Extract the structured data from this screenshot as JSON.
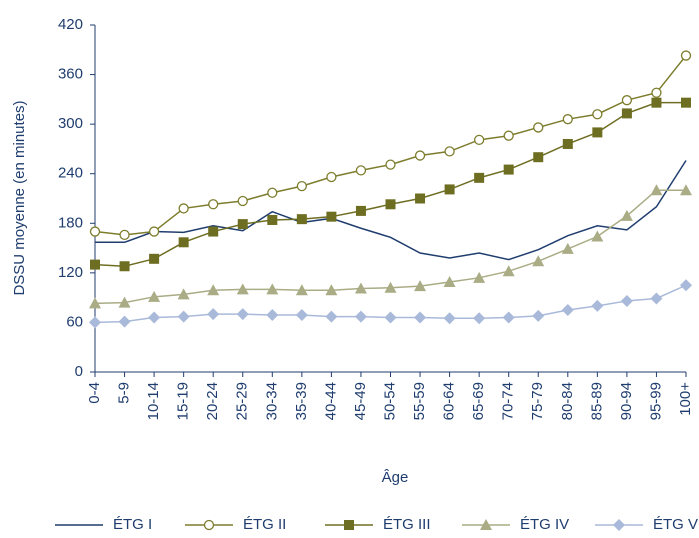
{
  "chart_data": {
    "type": "line",
    "y_label": "DSSU moyenne (en minutes)",
    "x_label": "Âge",
    "categories": [
      "0-4",
      "5-9",
      "10-14",
      "15-19",
      "20-24",
      "25-29",
      "30-34",
      "35-39",
      "40-44",
      "45-49",
      "50-54",
      "55-59",
      "60-64",
      "65-69",
      "70-74",
      "75-79",
      "80-84",
      "85-89",
      "90-94",
      "95-99",
      "100+"
    ],
    "series": [
      {
        "name": "ÉTG I",
        "color": "#1f3d6e",
        "marker": "none",
        "values": [
          157,
          157,
          170,
          169,
          177,
          171,
          194,
          181,
          186,
          174,
          163,
          144,
          138,
          144,
          136,
          148,
          165,
          177,
          172,
          200,
          256
        ]
      },
      {
        "name": "ÉTG II",
        "color": "#7d7d2e",
        "marker": "circle-open",
        "values": [
          170,
          166,
          170,
          198,
          203,
          207,
          217,
          225,
          236,
          244,
          251,
          262,
          267,
          281,
          286,
          296,
          306,
          312,
          329,
          338,
          383
        ]
      },
      {
        "name": "ÉTG III",
        "color": "#6e6e22",
        "marker": "square",
        "values": [
          130,
          128,
          137,
          157,
          170,
          179,
          184,
          185,
          188,
          195,
          203,
          210,
          221,
          235,
          245,
          260,
          276,
          290,
          313,
          326,
          326
        ]
      },
      {
        "name": "ÉTG IV",
        "color": "#a9ac84",
        "marker": "triangle",
        "values": [
          83,
          84,
          91,
          94,
          99,
          100,
          100,
          99,
          99,
          101,
          102,
          104,
          109,
          114,
          122,
          134,
          149,
          164,
          189,
          220,
          220
        ]
      },
      {
        "name": "ÉTG V",
        "color": "#a9b9d9",
        "marker": "diamond",
        "values": [
          60,
          61,
          66,
          67,
          70,
          70,
          69,
          69,
          67,
          67,
          66,
          66,
          65,
          65,
          66,
          68,
          75,
          80,
          86,
          89,
          105
        ]
      }
    ],
    "ylim": [
      0,
      420
    ],
    "yticks": [
      0,
      60,
      120,
      180,
      240,
      300,
      360,
      420
    ]
  }
}
